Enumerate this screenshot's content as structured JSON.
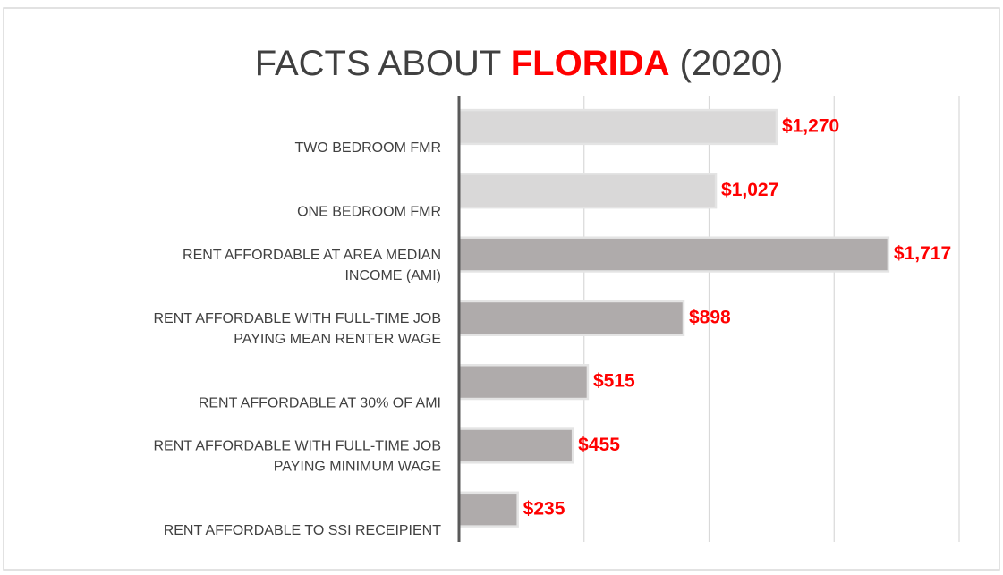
{
  "chart_data": {
    "type": "bar",
    "orientation": "horizontal",
    "title_parts": [
      "FACTS ABOUT",
      "FLORIDA",
      "(2020)"
    ],
    "categories": [
      [
        "TWO BEDROOM FMR"
      ],
      [
        "ONE BEDROOM FMR"
      ],
      [
        "RENT AFFORDABLE AT AREA MEDIAN",
        "INCOME (AMI)"
      ],
      [
        "RENT AFFORDABLE WITH FULL-TIME JOB",
        "PAYING MEAN RENTER WAGE"
      ],
      [
        "RENT AFFORDABLE AT 30% OF AMI"
      ],
      [
        "RENT AFFORDABLE WITH FULL-TIME JOB",
        "PAYING MINIMUM WAGE"
      ],
      [
        "RENT AFFORDABLE TO SSI RECEIPIENT"
      ]
    ],
    "values": [
      1270,
      1027,
      1717,
      898,
      515,
      455,
      235
    ],
    "value_labels": [
      "$1,270",
      "$1,027",
      "$1,717",
      "$898",
      "$515",
      "$455",
      "$235"
    ],
    "colors": [
      "#d9d8d8",
      "#d9d8d8",
      "#afabab",
      "#afabab",
      "#afabab",
      "#afabab",
      "#afabab"
    ],
    "label_color": "#ff0000",
    "xlim": [
      0,
      2000
    ],
    "xticks": [
      0,
      500,
      1000,
      1500,
      2000
    ],
    "grid": true
  }
}
